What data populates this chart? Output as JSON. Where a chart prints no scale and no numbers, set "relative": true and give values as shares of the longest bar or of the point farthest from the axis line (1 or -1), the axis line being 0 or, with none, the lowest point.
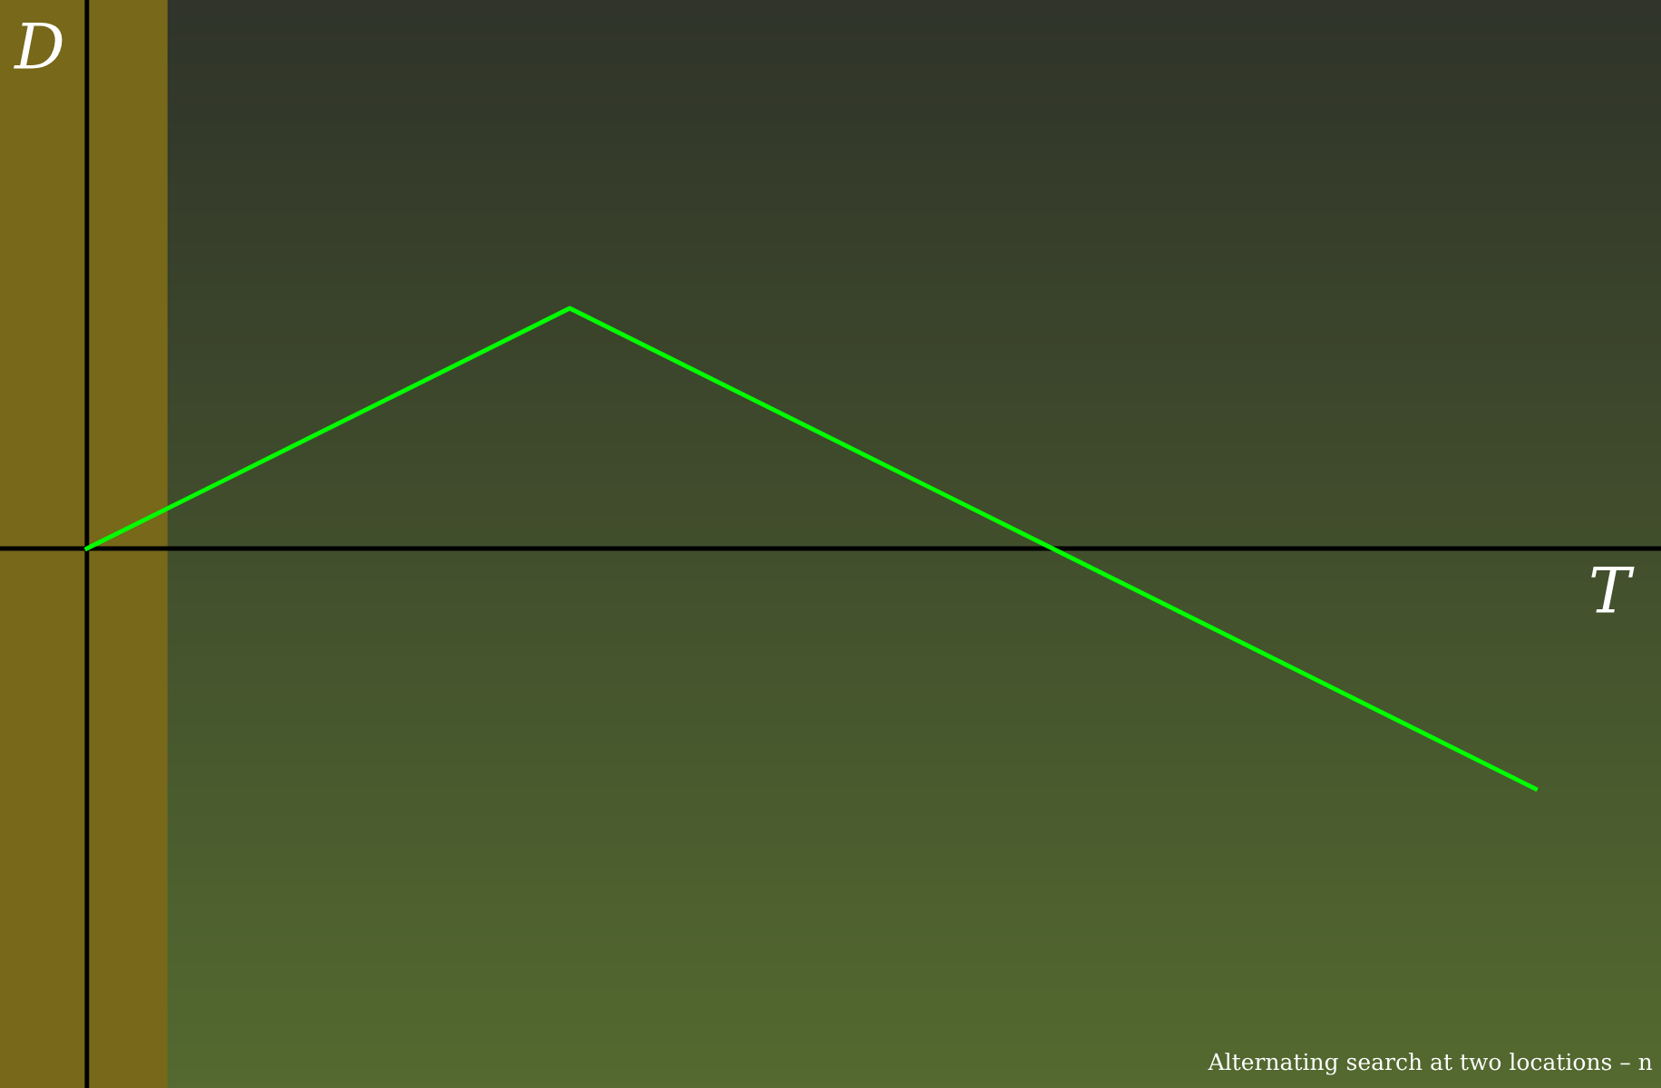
{
  "chart_data": {
    "type": "line",
    "xlabel": "T",
    "ylabel": "D",
    "relative": true,
    "categories": [
      null,
      null,
      null,
      null
    ],
    "series": [
      {
        "color": "#00ff00",
        "values": [
          0,
          1,
          0,
          -1
        ]
      }
    ],
    "annotations": [
      "Alternating search at two locations – n"
    ]
  }
}
